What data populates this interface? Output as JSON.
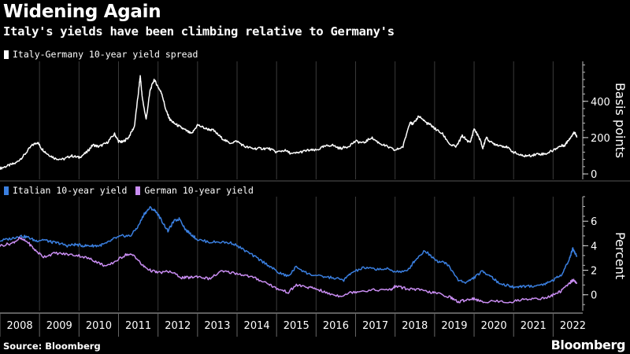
{
  "header": {
    "title": "Widening Again",
    "subtitle": "Italy's yields have been climbing relative to Germany's"
  },
  "footer": {
    "source": "Source: Bloomberg",
    "brand": "Bloomberg"
  },
  "colors": {
    "spread": "#ffffff",
    "italy": "#3a7fe0",
    "germany": "#c98df2",
    "grid": "#3a3a3a",
    "background": "#000000"
  },
  "chart_data": [
    {
      "type": "line",
      "title": "Italy-Germany 10-year yield spread",
      "ylabel": "Basis points",
      "ylim": [
        -30,
        620
      ],
      "yticks": [
        0,
        200,
        400
      ],
      "xlim": [
        2008.0,
        2022.75
      ],
      "legend": [
        "Italy-Germany 10-year yield spread"
      ],
      "series": [
        {
          "name": "Italy-Germany 10-year yield spread",
          "x": [
            2008.0,
            2008.2,
            2008.4,
            2008.6,
            2008.8,
            2008.95,
            2009.05,
            2009.2,
            2009.4,
            2009.6,
            2009.8,
            2010.0,
            2010.2,
            2010.35,
            2010.5,
            2010.7,
            2010.9,
            2011.0,
            2011.1,
            2011.25,
            2011.4,
            2011.5,
            2011.55,
            2011.6,
            2011.7,
            2011.8,
            2011.9,
            2012.0,
            2012.1,
            2012.2,
            2012.3,
            2012.4,
            2012.55,
            2012.7,
            2012.85,
            2013.0,
            2013.2,
            2013.4,
            2013.6,
            2013.8,
            2014.0,
            2014.2,
            2014.4,
            2014.6,
            2014.8,
            2015.0,
            2015.2,
            2015.4,
            2015.6,
            2015.8,
            2016.0,
            2016.2,
            2016.4,
            2016.6,
            2016.8,
            2017.0,
            2017.2,
            2017.4,
            2017.6,
            2017.8,
            2018.0,
            2018.2,
            2018.38,
            2018.45,
            2018.6,
            2018.8,
            2018.9,
            2019.0,
            2019.2,
            2019.4,
            2019.55,
            2019.7,
            2019.9,
            2020.0,
            2020.15,
            2020.22,
            2020.3,
            2020.45,
            2020.6,
            2020.8,
            2021.0,
            2021.2,
            2021.4,
            2021.6,
            2021.8,
            2022.0,
            2022.15,
            2022.3,
            2022.4,
            2022.5,
            2022.55,
            2022.6
          ],
          "y": [
            30,
            45,
            60,
            100,
            155,
            175,
            140,
            110,
            85,
            80,
            100,
            90,
            120,
            160,
            150,
            170,
            220,
            180,
            175,
            200,
            260,
            440,
            540,
            420,
            300,
            460,
            520,
            480,
            440,
            350,
            300,
            280,
            260,
            240,
            220,
            270,
            250,
            240,
            200,
            170,
            180,
            150,
            140,
            140,
            140,
            120,
            130,
            110,
            120,
            130,
            130,
            150,
            160,
            140,
            150,
            180,
            170,
            200,
            170,
            150,
            130,
            150,
            290,
            270,
            320,
            280,
            270,
            250,
            220,
            160,
            150,
            210,
            170,
            250,
            190,
            140,
            200,
            170,
            160,
            150,
            120,
            100,
            100,
            110,
            110,
            130,
            150,
            160,
            190,
            220,
            230,
            200
          ]
        }
      ]
    },
    {
      "type": "line",
      "ylabel": "Percent",
      "ylim": [
        -1.3,
        8.0
      ],
      "yticks": [
        0,
        2,
        4,
        6
      ],
      "xlim": [
        2008.0,
        2022.75
      ],
      "legend": [
        "Italian 10-year yield",
        "German 10-year yield"
      ],
      "x_tick_labels": [
        "2008",
        "2009",
        "2010",
        "2011",
        "2012",
        "2013",
        "2014",
        "2015",
        "2016",
        "2017",
        "2018",
        "2019",
        "2020",
        "2021",
        "2022"
      ],
      "series": [
        {
          "name": "Italian 10-year yield",
          "x": [
            2008.0,
            2008.3,
            2008.5,
            2008.7,
            2008.9,
            2009.1,
            2009.3,
            2009.5,
            2009.7,
            2009.9,
            2010.1,
            2010.3,
            2010.5,
            2010.7,
            2010.9,
            2011.1,
            2011.3,
            2011.5,
            2011.65,
            2011.8,
            2011.95,
            2012.1,
            2012.25,
            2012.4,
            2012.55,
            2012.7,
            2012.85,
            2013.0,
            2013.3,
            2013.6,
            2013.9,
            2014.2,
            2014.5,
            2014.8,
            2015.05,
            2015.3,
            2015.5,
            2015.8,
            2016.1,
            2016.4,
            2016.7,
            2016.9,
            2017.2,
            2017.5,
            2017.8,
            2018.0,
            2018.3,
            2018.5,
            2018.75,
            2018.9,
            2019.1,
            2019.3,
            2019.6,
            2019.8,
            2020.0,
            2020.2,
            2020.4,
            2020.6,
            2020.9,
            2021.0,
            2021.2,
            2021.5,
            2021.8,
            2022.0,
            2022.2,
            2022.4,
            2022.5,
            2022.55,
            2022.6
          ],
          "y": [
            4.4,
            4.6,
            4.8,
            4.7,
            4.4,
            4.5,
            4.3,
            4.2,
            4.0,
            4.1,
            4.0,
            4.0,
            4.0,
            4.2,
            4.6,
            4.8,
            4.8,
            5.6,
            6.6,
            7.1,
            6.8,
            6.0,
            5.2,
            6.0,
            6.2,
            5.3,
            4.9,
            4.5,
            4.3,
            4.3,
            4.2,
            3.6,
            3.0,
            2.4,
            1.8,
            1.5,
            2.3,
            1.7,
            1.5,
            1.4,
            1.2,
            1.8,
            2.2,
            2.1,
            2.1,
            1.9,
            1.9,
            2.8,
            3.6,
            3.2,
            2.7,
            2.6,
            1.2,
            1.0,
            1.4,
            1.9,
            1.6,
            1.0,
            0.7,
            0.6,
            0.7,
            0.7,
            0.9,
            1.2,
            1.6,
            2.8,
            3.8,
            3.4,
            3.2
          ]
        },
        {
          "name": "German 10-year yield",
          "x": [
            2008.0,
            2008.3,
            2008.5,
            2008.7,
            2008.9,
            2009.1,
            2009.4,
            2009.7,
            2010.0,
            2010.3,
            2010.5,
            2010.7,
            2011.0,
            2011.2,
            2011.4,
            2011.6,
            2011.8,
            2012.0,
            2012.3,
            2012.6,
            2012.8,
            2013.0,
            2013.3,
            2013.6,
            2013.9,
            2014.2,
            2014.5,
            2014.8,
            2015.0,
            2015.3,
            2015.5,
            2015.8,
            2016.0,
            2016.3,
            2016.6,
            2016.9,
            2017.1,
            2017.5,
            2017.9,
            2018.0,
            2018.3,
            2018.6,
            2018.9,
            2019.1,
            2019.4,
            2019.6,
            2019.8,
            2020.0,
            2020.2,
            2020.5,
            2020.9,
            2021.2,
            2021.5,
            2021.8,
            2022.0,
            2022.2,
            2022.4,
            2022.5,
            2022.6
          ],
          "y": [
            4.0,
            4.2,
            4.6,
            4.3,
            3.6,
            3.1,
            3.4,
            3.3,
            3.2,
            2.9,
            2.6,
            2.3,
            2.9,
            3.3,
            3.2,
            2.4,
            2.0,
            1.8,
            1.9,
            1.4,
            1.4,
            1.5,
            1.3,
            1.9,
            1.8,
            1.6,
            1.3,
            0.9,
            0.5,
            0.2,
            0.8,
            0.6,
            0.5,
            0.1,
            -0.1,
            0.2,
            0.3,
            0.4,
            0.4,
            0.7,
            0.5,
            0.4,
            0.2,
            0.1,
            -0.2,
            -0.6,
            -0.4,
            -0.3,
            -0.6,
            -0.5,
            -0.6,
            -0.4,
            -0.3,
            -0.3,
            0.0,
            0.3,
            0.9,
            1.2,
            1.0
          ]
        }
      ]
    }
  ]
}
